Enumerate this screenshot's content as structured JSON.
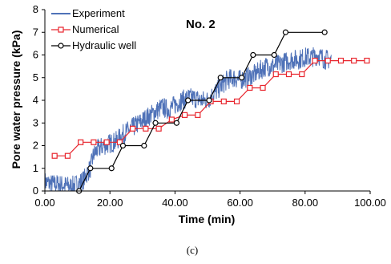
{
  "chart_data": {
    "type": "line",
    "title": "No. 2",
    "xlabel": "Time (min)",
    "ylabel": "Pore water pressure (kPa)",
    "xlim": [
      0,
      100
    ],
    "ylim": [
      0,
      8
    ],
    "x_ticks": [
      "0.00",
      "20.00",
      "40.00",
      "60.00",
      "80.00",
      "100.00"
    ],
    "y_ticks": [
      "0",
      "1",
      "2",
      "3",
      "4",
      "5",
      "6",
      "7",
      "8"
    ],
    "grid": false,
    "legend_position": "top-left",
    "caption": "(c)",
    "series": [
      {
        "name": "Experiment",
        "color": "#4f72b8",
        "marker": "none",
        "noisy": true,
        "x": [
          0,
          2,
          4,
          6,
          8,
          10,
          12,
          13,
          14,
          15,
          16,
          18,
          20,
          22,
          24,
          26,
          28,
          30,
          32,
          34,
          36,
          38,
          40,
          42,
          44,
          46,
          48,
          50,
          52,
          54,
          56,
          58,
          60,
          62,
          64,
          66,
          68,
          70,
          72,
          74,
          76,
          78,
          80,
          82,
          84,
          86,
          88
        ],
        "y": [
          0.4,
          0.3,
          0.3,
          0.25,
          0.2,
          0.3,
          0.5,
          0.8,
          1.0,
          1.6,
          1.8,
          2.0,
          2.1,
          2.2,
          2.5,
          2.7,
          2.9,
          3.1,
          3.3,
          3.5,
          3.7,
          3.6,
          3.8,
          4.0,
          4.1,
          4.1,
          4.0,
          4.0,
          4.3,
          4.6,
          4.9,
          5.0,
          4.9,
          5.0,
          5.1,
          5.3,
          5.5,
          5.5,
          5.6,
          5.7,
          5.8,
          5.8,
          5.9,
          5.9,
          6.0,
          5.8,
          5.8
        ]
      },
      {
        "name": "Numerical",
        "color": "#e8262e",
        "marker": "square",
        "x": [
          3,
          7,
          11,
          15,
          19,
          23,
          27,
          31,
          35,
          39,
          43,
          47,
          51,
          55,
          59,
          63,
          67,
          71,
          75,
          79,
          83,
          87,
          91,
          95,
          99
        ],
        "y": [
          1.55,
          1.55,
          2.15,
          2.15,
          2.15,
          2.15,
          2.75,
          2.75,
          2.75,
          3.15,
          3.35,
          3.35,
          3.95,
          3.95,
          3.95,
          4.55,
          4.55,
          5.15,
          5.15,
          5.15,
          5.75,
          5.75,
          5.75,
          5.75,
          5.75
        ]
      },
      {
        "name": "Hydraulic well",
        "color": "#000000",
        "marker": "circle",
        "x": [
          10.5,
          14,
          20.5,
          24,
          30.5,
          34,
          40.5,
          44,
          50.5,
          54,
          60.5,
          64,
          70.5,
          74,
          86
        ],
        "y": [
          0,
          1,
          1,
          2,
          2,
          3,
          3,
          4,
          4,
          5,
          5,
          6,
          6,
          7,
          7
        ]
      }
    ]
  }
}
